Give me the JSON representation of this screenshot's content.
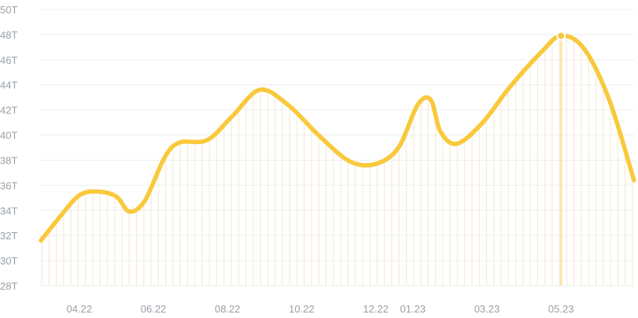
{
  "chart_data": {
    "type": "area",
    "title": "",
    "xlabel": "",
    "ylabel": "",
    "x_ticks": [
      "04.22",
      "06.22",
      "08.22",
      "10.22",
      "12.22",
      "01.23",
      "03.23",
      "05.23"
    ],
    "y_ticks": [
      "28T",
      "30T",
      "32T",
      "34T",
      "36T",
      "38T",
      "40T",
      "42T",
      "44T",
      "46T",
      "48T",
      "50T"
    ],
    "ylim": [
      28,
      50
    ],
    "x_range_months": [
      "02.22",
      "07.23"
    ],
    "grid": "horizontal",
    "legend": "none",
    "series": [
      {
        "values": [
          {
            "x": "2022-02-28",
            "y": 31.6
          },
          {
            "x": "2022-03-15",
            "y": 33.4
          },
          {
            "x": "2022-04-01",
            "y": 35.2
          },
          {
            "x": "2022-04-16",
            "y": 35.5
          },
          {
            "x": "2022-05-01",
            "y": 35.1
          },
          {
            "x": "2022-05-12",
            "y": 33.9
          },
          {
            "x": "2022-05-25",
            "y": 34.8
          },
          {
            "x": "2022-06-10",
            "y": 38.2
          },
          {
            "x": "2022-06-22",
            "y": 39.4
          },
          {
            "x": "2022-07-15",
            "y": 39.6
          },
          {
            "x": "2022-08-05",
            "y": 41.5
          },
          {
            "x": "2022-08-28",
            "y": 43.6
          },
          {
            "x": "2022-09-20",
            "y": 42.4
          },
          {
            "x": "2022-10-15",
            "y": 40.0
          },
          {
            "x": "2022-11-10",
            "y": 37.9
          },
          {
            "x": "2022-12-01",
            "y": 37.7
          },
          {
            "x": "2022-12-20",
            "y": 39.0
          },
          {
            "x": "2023-01-05",
            "y": 42.4
          },
          {
            "x": "2023-01-16",
            "y": 42.8
          },
          {
            "x": "2023-01-24",
            "y": 40.3
          },
          {
            "x": "2023-02-06",
            "y": 39.3
          },
          {
            "x": "2023-02-25",
            "y": 40.9
          },
          {
            "x": "2023-03-20",
            "y": 43.8
          },
          {
            "x": "2023-04-15",
            "y": 46.6
          },
          {
            "x": "2023-05-01",
            "y": 47.9
          },
          {
            "x": "2023-05-20",
            "y": 46.9
          },
          {
            "x": "2023-06-10",
            "y": 42.8
          },
          {
            "x": "2023-06-30",
            "y": 36.4
          }
        ]
      }
    ],
    "highlight": {
      "x": "2023-05-01",
      "y": 47.9
    },
    "colors": {
      "line": "#f9c93c",
      "fill_lines": "#f4ecd6",
      "highlight_line": "#fde6a6",
      "grid": "#eeeeee",
      "tick_text": "#9aa0a6"
    }
  }
}
